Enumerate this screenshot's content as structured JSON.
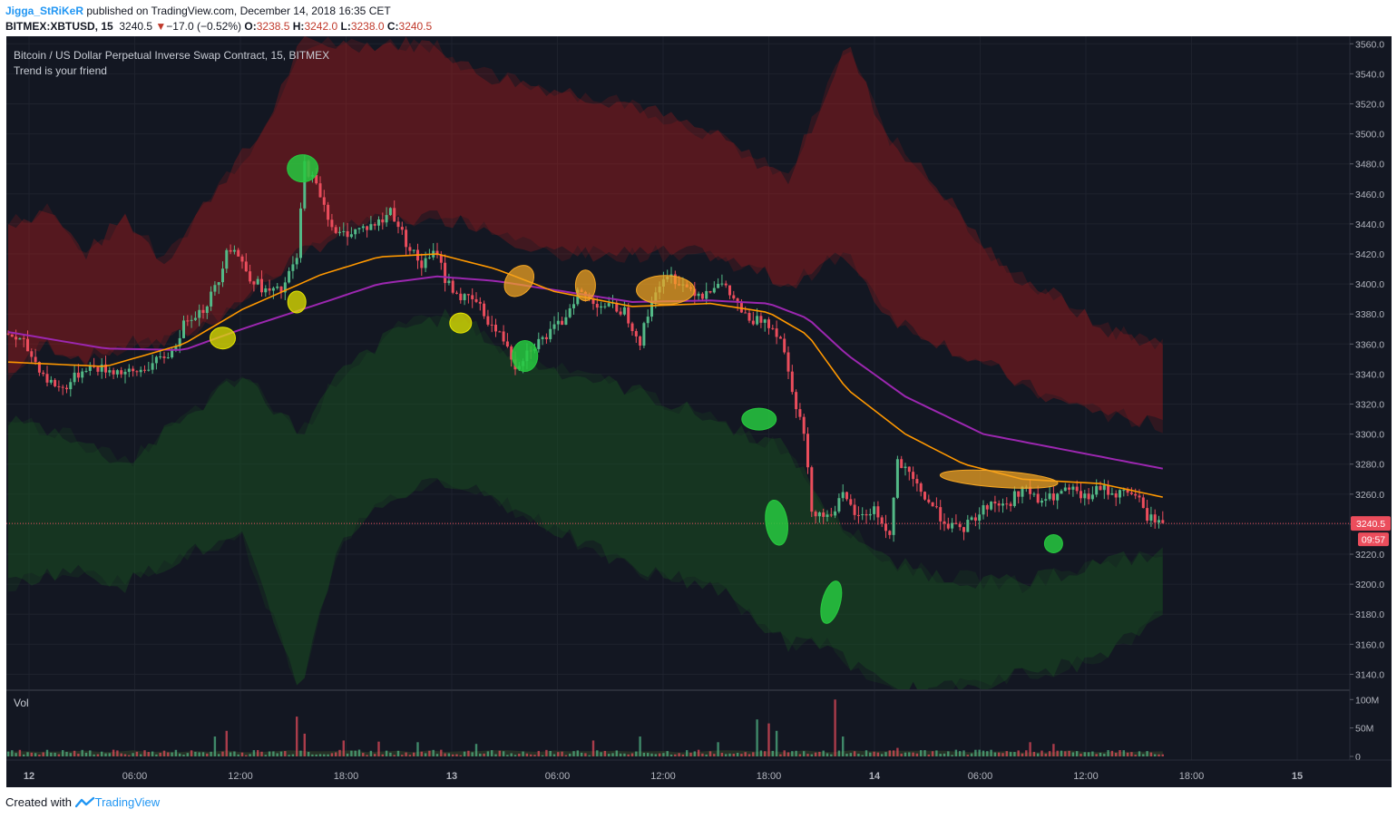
{
  "header": {
    "author": "Jigga_StRiKeR",
    "published": "published on TradingView.com, December 14, 2018 16:35 CET",
    "symbol": "BITMEX:XBTUSD, 15",
    "last": "3240.5",
    "change_arrow": "▼",
    "change": "−17.0 (−0.52%)",
    "o_label": "O:",
    "o_value": "3238.5",
    "h_label": "H:",
    "h_value": "3242.0",
    "l_label": "L:",
    "l_value": "3238.0",
    "c_label": "C:",
    "c_value": "3240.5"
  },
  "chart_data": {
    "type": "candlestick",
    "title": "Bitcoin / US Dollar Perpetual Inverse Swap Contract, 15, BITMEX",
    "subtitle": "Trend is your friend",
    "ylim": [
      3130,
      3565
    ],
    "y_ticks": [
      "3560.0",
      "3540.0",
      "3520.0",
      "3500.0",
      "3480.0",
      "3460.0",
      "3440.0",
      "3420.0",
      "3400.0",
      "3380.0",
      "3360.0",
      "3340.0",
      "3320.0",
      "3300.0",
      "3280.0",
      "3260.0",
      "3240.0",
      "3220.0",
      "3200.0",
      "3180.0",
      "3160.0",
      "3140.0"
    ],
    "x_ticks": [
      "12",
      "06:00",
      "12:00",
      "18:00",
      "13",
      "06:00",
      "12:00",
      "18:00",
      "14",
      "06:00",
      "12:00",
      "18:00",
      "15"
    ],
    "x_tick_bold": [
      true,
      false,
      false,
      false,
      true,
      false,
      false,
      false,
      true,
      false,
      false,
      false,
      true
    ],
    "last_price_label": "3240.5",
    "countdown_label": "09:57",
    "last_price": 3240.5,
    "colors": {
      "background": "#131722",
      "up": "#53b987",
      "down": "#eb4d5c",
      "ema_fast": "#ff9800",
      "ema_slow": "#9c27b0",
      "band_upper": "#b71c1c",
      "band_lower": "#1b5e20",
      "highlight_green": "#27c93f",
      "highlight_yellow": "#e6e600",
      "highlight_orange": "#f5a623"
    },
    "price_anchors": [
      [
        0,
        3367
      ],
      [
        4,
        3360
      ],
      [
        10,
        3336
      ],
      [
        14,
        3330
      ],
      [
        20,
        3345
      ],
      [
        28,
        3342
      ],
      [
        32,
        3340
      ],
      [
        38,
        3348
      ],
      [
        42,
        3355
      ],
      [
        46,
        3378
      ],
      [
        50,
        3383
      ],
      [
        54,
        3402
      ],
      [
        56,
        3425
      ],
      [
        58,
        3423
      ],
      [
        62,
        3405
      ],
      [
        66,
        3395
      ],
      [
        70,
        3395
      ],
      [
        74,
        3417
      ],
      [
        76,
        3480
      ],
      [
        80,
        3460
      ],
      [
        84,
        3432
      ],
      [
        88,
        3435
      ],
      [
        92,
        3438
      ],
      [
        96,
        3442
      ],
      [
        98,
        3450
      ],
      [
        102,
        3428
      ],
      [
        106,
        3412
      ],
      [
        110,
        3422
      ],
      [
        112,
        3403
      ],
      [
        116,
        3391
      ],
      [
        120,
        3388
      ],
      [
        124,
        3372
      ],
      [
        128,
        3360
      ],
      [
        130,
        3345
      ],
      [
        134,
        3358
      ],
      [
        138,
        3365
      ],
      [
        142,
        3375
      ],
      [
        146,
        3395
      ],
      [
        150,
        3388
      ],
      [
        154,
        3385
      ],
      [
        158,
        3382
      ],
      [
        162,
        3362
      ],
      [
        166,
        3397
      ],
      [
        170,
        3405
      ],
      [
        174,
        3398
      ],
      [
        178,
        3393
      ],
      [
        182,
        3402
      ],
      [
        186,
        3390
      ],
      [
        190,
        3374
      ],
      [
        194,
        3377
      ],
      [
        198,
        3365
      ],
      [
        202,
        3320
      ],
      [
        204,
        3300
      ],
      [
        206,
        3250
      ],
      [
        210,
        3245
      ],
      [
        214,
        3258
      ],
      [
        218,
        3244
      ],
      [
        222,
        3250
      ],
      [
        226,
        3232
      ],
      [
        228,
        3282
      ],
      [
        232,
        3268
      ],
      [
        236,
        3255
      ],
      [
        240,
        3242
      ],
      [
        244,
        3235
      ],
      [
        248,
        3245
      ],
      [
        252,
        3255
      ],
      [
        256,
        3252
      ],
      [
        260,
        3265
      ],
      [
        264,
        3255
      ],
      [
        268,
        3258
      ],
      [
        272,
        3263
      ],
      [
        276,
        3257
      ],
      [
        280,
        3264
      ],
      [
        284,
        3260
      ],
      [
        288,
        3262
      ],
      [
        290,
        3255
      ],
      [
        292,
        3245
      ],
      [
        294,
        3243
      ],
      [
        296,
        3240.5
      ]
    ],
    "ema_fast": [
      [
        0,
        3348
      ],
      [
        25,
        3345
      ],
      [
        45,
        3360
      ],
      [
        60,
        3383
      ],
      [
        80,
        3406
      ],
      [
        95,
        3418
      ],
      [
        110,
        3420
      ],
      [
        125,
        3410
      ],
      [
        140,
        3395
      ],
      [
        160,
        3385
      ],
      [
        180,
        3387
      ],
      [
        195,
        3381
      ],
      [
        205,
        3366
      ],
      [
        215,
        3330
      ],
      [
        230,
        3300
      ],
      [
        245,
        3280
      ],
      [
        260,
        3270
      ],
      [
        280,
        3267
      ],
      [
        296,
        3258
      ]
    ],
    "ema_slow": [
      [
        0,
        3368
      ],
      [
        25,
        3357
      ],
      [
        45,
        3356
      ],
      [
        60,
        3370
      ],
      [
        80,
        3387
      ],
      [
        95,
        3400
      ],
      [
        110,
        3405
      ],
      [
        125,
        3402
      ],
      [
        140,
        3396
      ],
      [
        160,
        3388
      ],
      [
        180,
        3389
      ],
      [
        195,
        3387
      ],
      [
        205,
        3377
      ],
      [
        215,
        3353
      ],
      [
        230,
        3325
      ],
      [
        250,
        3300
      ],
      [
        270,
        3290
      ],
      [
        296,
        3277
      ]
    ],
    "band_upper": [
      [
        0,
        3440,
        3340
      ],
      [
        10,
        3450,
        3360
      ],
      [
        20,
        3420,
        3350
      ],
      [
        30,
        3445,
        3360
      ],
      [
        40,
        3415,
        3360
      ],
      [
        55,
        3470,
        3380
      ],
      [
        65,
        3500,
        3400
      ],
      [
        75,
        3560,
        3420
      ],
      [
        90,
        3560,
        3440
      ],
      [
        110,
        3560,
        3445
      ],
      [
        120,
        3540,
        3440
      ],
      [
        140,
        3530,
        3420
      ],
      [
        160,
        3520,
        3420
      ],
      [
        180,
        3500,
        3420
      ],
      [
        200,
        3470,
        3400
      ],
      [
        215,
        3560,
        3420
      ],
      [
        225,
        3500,
        3380
      ],
      [
        240,
        3460,
        3360
      ],
      [
        255,
        3410,
        3340
      ],
      [
        270,
        3390,
        3320
      ],
      [
        280,
        3370,
        3315
      ],
      [
        296,
        3360,
        3305
      ]
    ],
    "band_lower": [
      [
        0,
        3310,
        3200
      ],
      [
        15,
        3300,
        3210
      ],
      [
        30,
        3280,
        3200
      ],
      [
        45,
        3310,
        3220
      ],
      [
        60,
        3340,
        3230
      ],
      [
        75,
        3300,
        3130
      ],
      [
        85,
        3340,
        3230
      ],
      [
        100,
        3370,
        3260
      ],
      [
        115,
        3380,
        3270
      ],
      [
        130,
        3350,
        3250
      ],
      [
        145,
        3340,
        3230
      ],
      [
        160,
        3330,
        3210
      ],
      [
        180,
        3310,
        3200
      ],
      [
        200,
        3290,
        3160
      ],
      [
        210,
        3250,
        3160
      ],
      [
        225,
        3215,
        3130
      ],
      [
        240,
        3205,
        3130
      ],
      [
        260,
        3200,
        3140
      ],
      [
        280,
        3215,
        3150
      ],
      [
        296,
        3220,
        3180
      ]
    ],
    "highlights": [
      {
        "bar": 75.5,
        "price": 3477,
        "kind": "green"
      },
      {
        "bar": 55,
        "price": 3364,
        "kind": "yellow"
      },
      {
        "bar": 74,
        "price": 3388,
        "kind": "yellow"
      },
      {
        "bar": 116,
        "price": 3374,
        "kind": "yellow"
      },
      {
        "bar": 131,
        "price": 3402,
        "kind": "orange"
      },
      {
        "bar": 132.5,
        "price": 3352,
        "kind": "green"
      },
      {
        "bar": 148,
        "price": 3399,
        "kind": "orange"
      },
      {
        "bar": 168.5,
        "price": 3396,
        "kind": "orange"
      },
      {
        "bar": 192.5,
        "price": 3310,
        "kind": "green"
      },
      {
        "bar": 197,
        "price": 3241,
        "kind": "green"
      },
      {
        "bar": 211,
        "price": 3188,
        "kind": "green"
      },
      {
        "bar": 254,
        "price": 3270,
        "kind": "orange"
      },
      {
        "bar": 268,
        "price": 3227,
        "kind": "green"
      }
    ],
    "volume": {
      "label": "Vol",
      "y_ticks": [
        "100M",
        "50M",
        "0"
      ],
      "ylim": [
        0,
        110
      ],
      "spikes": [
        [
          53,
          35
        ],
        [
          56,
          45
        ],
        [
          74,
          70
        ],
        [
          76,
          40
        ],
        [
          86,
          28
        ],
        [
          95,
          26
        ],
        [
          105,
          25
        ],
        [
          120,
          22
        ],
        [
          150,
          28
        ],
        [
          162,
          35
        ],
        [
          182,
          25
        ],
        [
          192,
          65
        ],
        [
          195,
          58
        ],
        [
          197,
          45
        ],
        [
          212,
          100
        ],
        [
          214,
          35
        ],
        [
          228,
          15
        ],
        [
          262,
          25
        ],
        [
          268,
          22
        ]
      ]
    }
  },
  "footer": {
    "created_with": "Created with",
    "brand": "TradingView"
  }
}
